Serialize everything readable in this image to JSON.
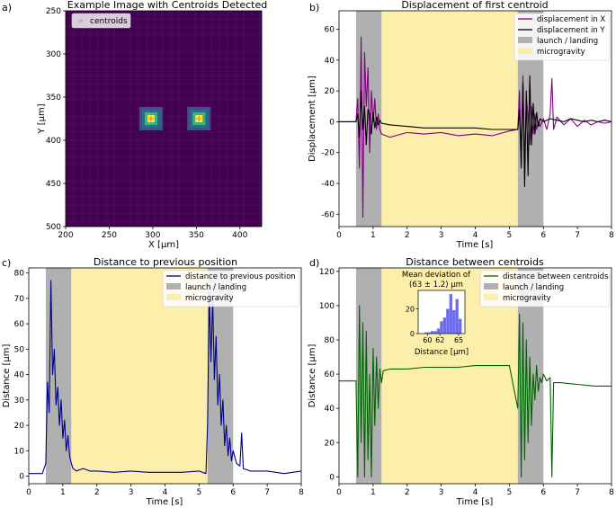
{
  "figure": {
    "panels": [
      {
        "id": "a",
        "tag": "a)",
        "title": "Example Image with Centroids Detected",
        "xlabel": "X [µm]",
        "ylabel": "Y [µm]"
      },
      {
        "id": "b",
        "tag": "b)",
        "title": "Displacement of first centroid",
        "xlabel": "Time [s]",
        "ylabel": "Displacement [µm]"
      },
      {
        "id": "c",
        "tag": "c)",
        "title": "Distance to previous position",
        "xlabel": "Time [s]",
        "ylabel": "Distance [µm]"
      },
      {
        "id": "d",
        "tag": "d)",
        "title": "Distance between centroids",
        "xlabel": "Time [s]",
        "ylabel": "Distance [µm]"
      }
    ]
  },
  "chart_data": [
    {
      "type": "heatmap",
      "title": "Example Image with Centroids Detected",
      "xlabel": "X [µm]",
      "ylabel": "Y [µm]",
      "xlim": [
        200,
        425
      ],
      "ylim": [
        500,
        250
      ],
      "xticks": [
        200,
        250,
        300,
        350,
        400
      ],
      "yticks": [
        250,
        300,
        350,
        400,
        450,
        500
      ],
      "legend": [
        "centroids"
      ],
      "legend_position": "top-left",
      "centroids": [
        {
          "x": 298,
          "y": 375
        },
        {
          "x": 353,
          "y": 375
        }
      ],
      "colors": {
        "background": "#440154",
        "spot_outer": "#31688e",
        "spot_mid": "#35b779",
        "spot_core": "#fde725",
        "marker": "#e377c2"
      }
    },
    {
      "type": "line",
      "title": "Displacement of first centroid",
      "xlabel": "Time [s]",
      "ylabel": "Displacement [µm]",
      "xlim": [
        0,
        8
      ],
      "ylim": [
        -68,
        72
      ],
      "xticks": [
        0,
        1,
        2,
        3,
        4,
        5,
        6,
        7,
        8
      ],
      "yticks": [
        -60,
        -40,
        -20,
        0,
        20,
        40,
        60
      ],
      "shaded": [
        {
          "label": "launch / landing",
          "from": 0.5,
          "to": 1.25,
          "color": "#b0b0b0"
        },
        {
          "label": "microgravity",
          "from": 1.25,
          "to": 5.25,
          "color": "#fcefac"
        },
        {
          "label": "launch / landing",
          "from": 5.25,
          "to": 6.0,
          "color": "#b0b0b0"
        }
      ],
      "legend": [
        "displacement in X",
        "displacement in Y",
        "launch / landing",
        "microgravity"
      ],
      "legend_position": "top-right",
      "series": [
        {
          "name": "displacement in X",
          "color": "#800080",
          "x": [
            0,
            0.5,
            0.55,
            0.6,
            0.65,
            0.7,
            0.75,
            0.8,
            0.85,
            0.9,
            0.95,
            1.0,
            1.05,
            1.1,
            1.15,
            1.2,
            1.25,
            1.5,
            2,
            2.5,
            3,
            3.5,
            4,
            4.5,
            5,
            5.25,
            5.3,
            5.35,
            5.4,
            5.45,
            5.5,
            5.55,
            5.6,
            5.65,
            5.7,
            5.75,
            5.8,
            5.85,
            5.9,
            6.0,
            6.1,
            6.2,
            6.25,
            6.3,
            6.4,
            6.6,
            6.8,
            7.0,
            7.2,
            7.4,
            7.6,
            7.8,
            8.0
          ],
          "values": [
            0,
            0,
            15,
            -30,
            55,
            -62,
            45,
            10,
            35,
            -20,
            20,
            0,
            15,
            -5,
            5,
            -5,
            -8,
            -10,
            -7,
            -8,
            -7,
            -9,
            -8,
            -9,
            -6,
            -5,
            20,
            -25,
            30,
            -28,
            15,
            5,
            -15,
            10,
            -8,
            5,
            -5,
            0,
            -3,
            2,
            -5,
            5,
            28,
            -5,
            3,
            -2,
            2,
            -3,
            1,
            -2,
            0,
            -1,
            0
          ]
        },
        {
          "name": "displacement in Y",
          "color": "#000000",
          "x": [
            0,
            0.5,
            0.55,
            0.6,
            0.65,
            0.7,
            0.75,
            0.8,
            0.85,
            0.9,
            0.95,
            1.0,
            1.05,
            1.1,
            1.15,
            1.2,
            1.25,
            1.5,
            2,
            2.5,
            3,
            3.5,
            4,
            4.5,
            5,
            5.25,
            5.3,
            5.35,
            5.4,
            5.45,
            5.5,
            5.55,
            5.6,
            5.65,
            5.7,
            5.75,
            5.8,
            5.85,
            5.9,
            6.0,
            6.2,
            6.4,
            6.6,
            6.8,
            7.0,
            7.2,
            7.4,
            7.6,
            7.8,
            8.0
          ],
          "values": [
            0,
            0,
            5,
            -10,
            20,
            -5,
            10,
            -15,
            8,
            5,
            -8,
            6,
            -4,
            3,
            -2,
            1,
            -1,
            -2,
            -3,
            -4,
            -4,
            -4,
            -4,
            -5,
            -5,
            -5,
            8,
            -30,
            25,
            -42,
            20,
            -35,
            30,
            -15,
            12,
            -8,
            6,
            -3,
            2,
            0,
            2,
            1,
            0,
            2,
            1,
            0,
            1,
            0,
            1,
            0
          ]
        }
      ]
    },
    {
      "type": "line",
      "title": "Distance to previous position",
      "xlabel": "Time [s]",
      "ylabel": "Distance [µm]",
      "xlim": [
        0,
        8
      ],
      "ylim": [
        -3,
        82
      ],
      "xticks": [
        0,
        1,
        2,
        3,
        4,
        5,
        6,
        7,
        8
      ],
      "yticks": [
        0,
        10,
        20,
        30,
        40,
        50,
        60,
        70,
        80
      ],
      "shaded": [
        {
          "label": "launch / landing",
          "from": 0.5,
          "to": 1.25,
          "color": "#b0b0b0"
        },
        {
          "label": "microgravity",
          "from": 1.25,
          "to": 5.25,
          "color": "#fcefac"
        },
        {
          "label": "launch / landing",
          "from": 5.25,
          "to": 6.0,
          "color": "#b0b0b0"
        }
      ],
      "legend": [
        "distance to previous position",
        "launch / landing",
        "microgravity"
      ],
      "legend_position": "top-right",
      "series": [
        {
          "name": "distance to previous position",
          "color": "#00008b",
          "x": [
            0,
            0.4,
            0.5,
            0.55,
            0.6,
            0.65,
            0.7,
            0.75,
            0.8,
            0.85,
            0.9,
            0.95,
            1.0,
            1.05,
            1.1,
            1.15,
            1.2,
            1.25,
            1.3,
            1.4,
            1.6,
            1.8,
            2.0,
            2.5,
            3.0,
            3.5,
            4.0,
            4.5,
            5.0,
            5.2,
            5.25,
            5.3,
            5.35,
            5.4,
            5.45,
            5.5,
            5.55,
            5.6,
            5.65,
            5.7,
            5.75,
            5.8,
            5.85,
            5.9,
            5.95,
            6.0,
            6.1,
            6.2,
            6.25,
            6.3,
            6.5,
            7.0,
            7.5,
            8.0
          ],
          "values": [
            1,
            1,
            5,
            37,
            25,
            77,
            40,
            50,
            28,
            35,
            20,
            30,
            15,
            22,
            10,
            16,
            8,
            5,
            3,
            2,
            3,
            2,
            2,
            1.5,
            2,
            1.5,
            1.5,
            1.5,
            2,
            1,
            20,
            72,
            45,
            70,
            38,
            55,
            28,
            40,
            20,
            30,
            12,
            20,
            8,
            15,
            6,
            10,
            5,
            4,
            17,
            3,
            2,
            2,
            1,
            2
          ]
        }
      ]
    },
    {
      "type": "line",
      "title": "Distance between centroids",
      "xlabel": "Time [s]",
      "ylabel": "Distance [µm]",
      "xlim": [
        0,
        8
      ],
      "ylim": [
        -4,
        122
      ],
      "xticks": [
        0,
        1,
        2,
        3,
        4,
        5,
        6,
        7,
        8
      ],
      "yticks": [
        0,
        20,
        40,
        60,
        80,
        100,
        120
      ],
      "shaded": [
        {
          "label": "launch / landing",
          "from": 0.5,
          "to": 1.25,
          "color": "#b0b0b0"
        },
        {
          "label": "microgravity",
          "from": 1.25,
          "to": 5.25,
          "color": "#fcefac"
        },
        {
          "label": "launch / landing",
          "from": 5.25,
          "to": 6.0,
          "color": "#b0b0b0"
        }
      ],
      "legend": [
        "distance between centroids",
        "launch / landing",
        "microgravity"
      ],
      "legend_position": "top-right",
      "series": [
        {
          "name": "distance between centroids",
          "color": "#006400",
          "x": [
            0,
            0.5,
            0.55,
            0.6,
            0.65,
            0.7,
            0.75,
            0.8,
            0.85,
            0.9,
            0.95,
            1.0,
            1.05,
            1.1,
            1.15,
            1.2,
            1.25,
            1.3,
            1.5,
            2.0,
            2.5,
            3.0,
            3.5,
            4.0,
            4.5,
            5.0,
            5.25,
            5.3,
            5.35,
            5.4,
            5.45,
            5.5,
            5.55,
            5.6,
            5.65,
            5.7,
            5.75,
            5.8,
            5.85,
            5.9,
            5.95,
            6.0,
            6.1,
            6.2,
            6.25,
            6.3,
            6.5,
            7.0,
            7.5,
            8.0
          ],
          "values": [
            56,
            56,
            0,
            100,
            20,
            90,
            0,
            85,
            10,
            60,
            0,
            75,
            30,
            70,
            40,
            63,
            55,
            62,
            63,
            63,
            64,
            64,
            64,
            65,
            65,
            65,
            40,
            95,
            0,
            90,
            10,
            80,
            20,
            70,
            30,
            60,
            45,
            65,
            50,
            58,
            55,
            60,
            56,
            58,
            0,
            55,
            55,
            54,
            53,
            53
          ]
        }
      ],
      "inset": {
        "type": "histogram",
        "title_line1": "Mean deviation of",
        "title_line2": "(63  ± 1.2) µm",
        "xlabel": "Distance [µm]",
        "xlim": [
          58.5,
          66
        ],
        "ylim": [
          0,
          35
        ],
        "xticks": [
          60,
          62,
          65
        ],
        "yticks": [
          0,
          20
        ],
        "bin_width": 0.5,
        "bins": [
          59.5,
          60.0,
          60.5,
          61.0,
          61.5,
          62.0,
          62.5,
          63.0,
          63.5,
          64.0,
          64.5,
          65.0
        ],
        "counts": [
          1,
          1,
          2,
          2,
          4,
          10,
          13,
          20,
          32,
          19,
          28,
          12
        ],
        "color": "#6b6bf0"
      }
    }
  ]
}
